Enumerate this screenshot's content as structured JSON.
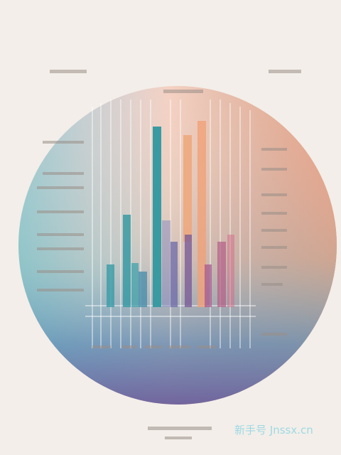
{
  "watermark": "新手号 Jnssx.cn"
}
